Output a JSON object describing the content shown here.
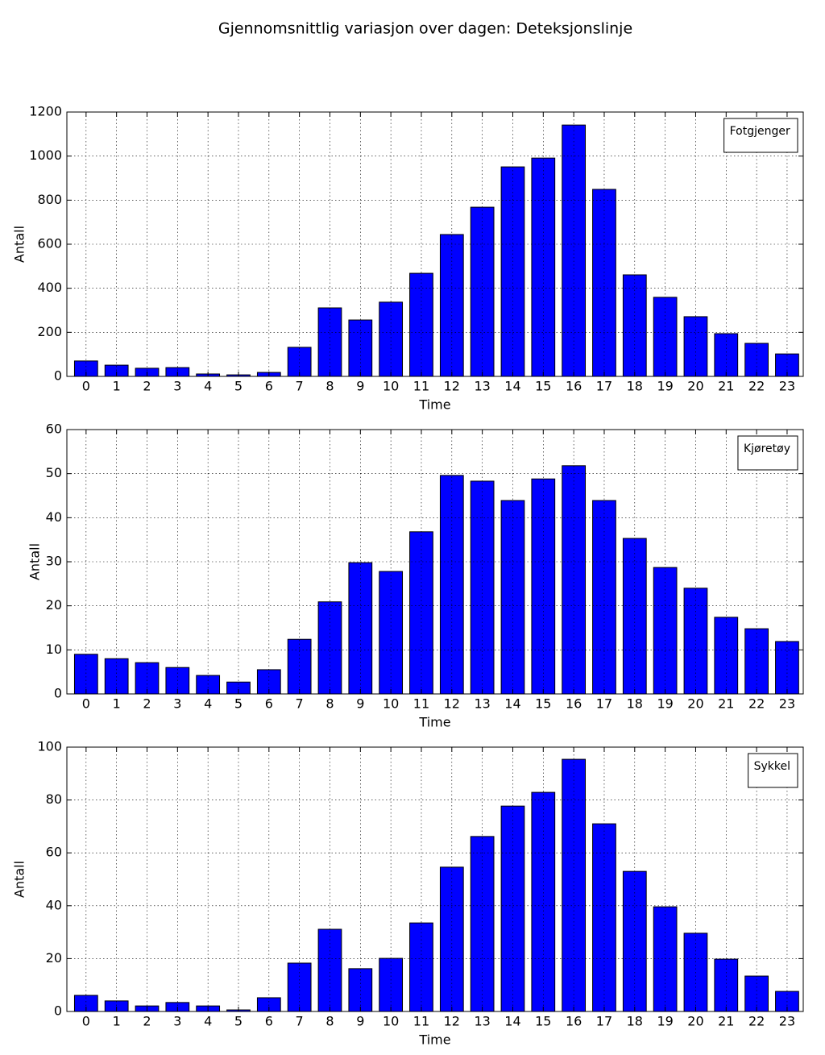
{
  "title": "Gjennomsnittlig variasjon over dagen: Deteksjonslinje",
  "chart_data": [
    {
      "type": "bar",
      "xlabel": "Time",
      "ylabel": "Antall",
      "x": [
        0,
        1,
        2,
        3,
        4,
        5,
        6,
        7,
        8,
        9,
        10,
        11,
        12,
        13,
        14,
        15,
        16,
        17,
        18,
        19,
        20,
        21,
        22,
        23
      ],
      "series": [
        {
          "name": "Fotgjenger",
          "color": "#0000ff",
          "values": [
            70,
            51,
            37,
            40,
            11,
            7,
            18,
            132,
            311,
            256,
            337,
            468,
            644,
            768,
            951,
            991,
            1141,
            849,
            461,
            359,
            271,
            194,
            150,
            102
          ]
        }
      ],
      "xlim": [
        -0.63,
        23.53
      ],
      "xticks": [
        0,
        1,
        2,
        3,
        4,
        5,
        6,
        7,
        8,
        9,
        10,
        11,
        12,
        13,
        14,
        15,
        16,
        17,
        18,
        19,
        20,
        21,
        22,
        23
      ],
      "ylim": [
        0,
        1200
      ],
      "yticks": [
        0,
        200,
        400,
        600,
        800,
        1000,
        1200
      ],
      "grid": true,
      "legend": "upper right"
    },
    {
      "type": "bar",
      "xlabel": "Time",
      "ylabel": "Antall",
      "x": [
        0,
        1,
        2,
        3,
        4,
        5,
        6,
        7,
        8,
        9,
        10,
        11,
        12,
        13,
        14,
        15,
        16,
        17,
        18,
        19,
        20,
        21,
        22,
        23
      ],
      "series": [
        {
          "name": "Kjøretøy",
          "color": "#0000ff",
          "values": [
            9.0,
            8.0,
            7.1,
            6.0,
            4.2,
            2.7,
            5.5,
            12.4,
            20.9,
            29.8,
            27.8,
            36.8,
            49.6,
            48.3,
            43.9,
            48.8,
            51.8,
            43.9,
            35.3,
            28.7,
            24.0,
            17.4,
            14.8,
            11.9
          ]
        }
      ],
      "xlim": [
        -0.63,
        23.53
      ],
      "xticks": [
        0,
        1,
        2,
        3,
        4,
        5,
        6,
        7,
        8,
        9,
        10,
        11,
        12,
        13,
        14,
        15,
        16,
        17,
        18,
        19,
        20,
        21,
        22,
        23
      ],
      "ylim": [
        0,
        60
      ],
      "yticks": [
        0,
        10,
        20,
        30,
        40,
        50,
        60
      ],
      "grid": true,
      "legend": "upper right"
    },
    {
      "type": "bar",
      "xlabel": "Time",
      "ylabel": "Antall",
      "x": [
        0,
        1,
        2,
        3,
        4,
        5,
        6,
        7,
        8,
        9,
        10,
        11,
        12,
        13,
        14,
        15,
        16,
        17,
        18,
        19,
        20,
        21,
        22,
        23
      ],
      "series": [
        {
          "name": "Sykkel",
          "color": "#0000ff",
          "values": [
            6.1,
            4.0,
            2.1,
            3.4,
            2.1,
            0.6,
            5.2,
            18.3,
            31.1,
            16.2,
            20.1,
            33.5,
            54.6,
            66.2,
            77.7,
            82.9,
            95.4,
            71.0,
            53.0,
            39.6,
            29.6,
            19.8,
            13.4,
            7.6
          ]
        }
      ],
      "xlim": [
        -0.63,
        23.53
      ],
      "xticks": [
        0,
        1,
        2,
        3,
        4,
        5,
        6,
        7,
        8,
        9,
        10,
        11,
        12,
        13,
        14,
        15,
        16,
        17,
        18,
        19,
        20,
        21,
        22,
        23
      ],
      "ylim": [
        0,
        100
      ],
      "yticks": [
        0,
        20,
        40,
        60,
        80,
        100
      ],
      "grid": true,
      "legend": "upper right"
    }
  ]
}
